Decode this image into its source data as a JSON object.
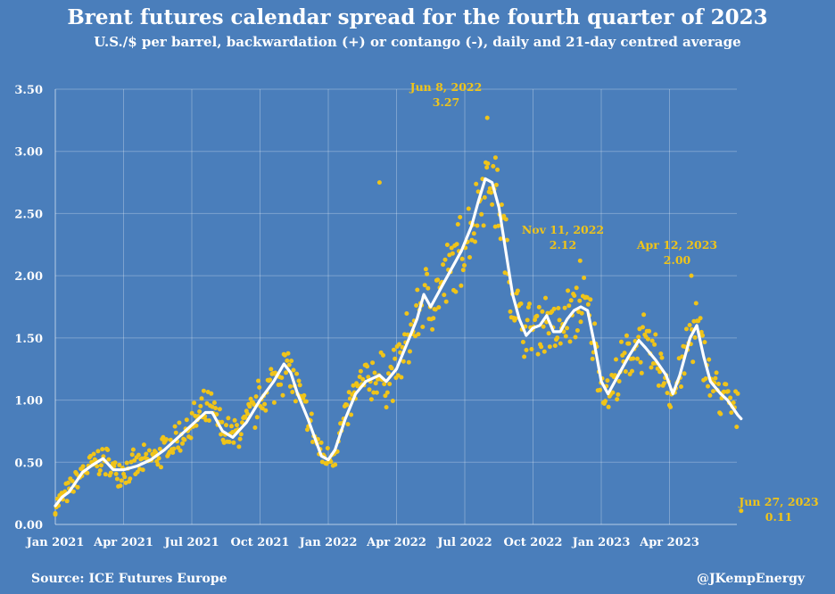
{
  "chart_data": {
    "type": "scatter",
    "title": "Brent futures calendar spread for the fourth quarter of 2023",
    "subtitle": "U.S./$ per barrel, backwardation (+) or contango (-), daily and 21-day centred average",
    "xlabel": "",
    "ylabel": "",
    "ylim": [
      0,
      3.5
    ],
    "y_ticks": [
      "0.00",
      "0.50",
      "1.00",
      "1.50",
      "2.00",
      "2.50",
      "3.00",
      "3.50"
    ],
    "x_tick_labels": [
      "Jan 2021",
      "Apr 2021",
      "Jul 2021",
      "Oct 2021",
      "Jan 2022",
      "Apr 2022",
      "Jul 2022",
      "Oct 2022",
      "Jan 2023",
      "Apr 2023"
    ],
    "grid": true,
    "dot_color": "#f0c419",
    "line_color": "#ffffff",
    "series": [
      {
        "name": "21-day centred average",
        "kind": "line",
        "points": [
          [
            0.0,
            0.15
          ],
          [
            0.1,
            0.22
          ],
          [
            0.2,
            0.26
          ],
          [
            0.3,
            0.34
          ],
          [
            0.4,
            0.42
          ],
          [
            0.55,
            0.48
          ],
          [
            0.7,
            0.53
          ],
          [
            0.85,
            0.44
          ],
          [
            1.0,
            0.44
          ],
          [
            1.2,
            0.47
          ],
          [
            1.4,
            0.52
          ],
          [
            1.6,
            0.6
          ],
          [
            1.8,
            0.7
          ],
          [
            2.0,
            0.8
          ],
          [
            2.2,
            0.9
          ],
          [
            2.3,
            0.9
          ],
          [
            2.45,
            0.75
          ],
          [
            2.6,
            0.7
          ],
          [
            2.8,
            0.82
          ],
          [
            3.0,
            1.0
          ],
          [
            3.2,
            1.15
          ],
          [
            3.35,
            1.29
          ],
          [
            3.45,
            1.22
          ],
          [
            3.55,
            1.05
          ],
          [
            3.7,
            0.85
          ],
          [
            3.9,
            0.55
          ],
          [
            4.0,
            0.52
          ],
          [
            4.1,
            0.6
          ],
          [
            4.25,
            0.85
          ],
          [
            4.4,
            1.05
          ],
          [
            4.55,
            1.15
          ],
          [
            4.75,
            1.2
          ],
          [
            4.85,
            1.15
          ],
          [
            5.0,
            1.25
          ],
          [
            5.15,
            1.45
          ],
          [
            5.3,
            1.65
          ],
          [
            5.4,
            1.85
          ],
          [
            5.5,
            1.75
          ],
          [
            5.65,
            1.9
          ],
          [
            5.8,
            2.05
          ],
          [
            5.95,
            2.2
          ],
          [
            6.1,
            2.4
          ],
          [
            6.2,
            2.6
          ],
          [
            6.3,
            2.78
          ],
          [
            6.4,
            2.75
          ],
          [
            6.5,
            2.55
          ],
          [
            6.6,
            2.2
          ],
          [
            6.7,
            1.85
          ],
          [
            6.8,
            1.65
          ],
          [
            6.9,
            1.52
          ],
          [
            7.0,
            1.58
          ],
          [
            7.1,
            1.6
          ],
          [
            7.2,
            1.68
          ],
          [
            7.3,
            1.55
          ],
          [
            7.4,
            1.55
          ],
          [
            7.5,
            1.65
          ],
          [
            7.6,
            1.72
          ],
          [
            7.7,
            1.75
          ],
          [
            7.8,
            1.72
          ],
          [
            7.9,
            1.45
          ],
          [
            8.0,
            1.15
          ],
          [
            8.1,
            1.05
          ],
          [
            8.25,
            1.2
          ],
          [
            8.4,
            1.35
          ],
          [
            8.55,
            1.48
          ],
          [
            8.65,
            1.42
          ],
          [
            8.8,
            1.32
          ],
          [
            8.95,
            1.2
          ],
          [
            9.05,
            1.05
          ],
          [
            9.15,
            1.2
          ],
          [
            9.3,
            1.5
          ],
          [
            9.4,
            1.6
          ],
          [
            9.5,
            1.35
          ],
          [
            9.6,
            1.15
          ],
          [
            9.75,
            1.05
          ],
          [
            9.85,
            1.0
          ],
          [
            10.0,
            0.88
          ],
          [
            10.05,
            0.85
          ]
        ]
      }
    ],
    "annotations": [
      {
        "label": "Jun 8, 2022",
        "value": "3.27"
      },
      {
        "label": "Nov 11, 2022",
        "value": "2.12"
      },
      {
        "label": "Apr 12, 2023",
        "value": "2.00"
      },
      {
        "label": "Jun 27, 2023",
        "value": "0.11"
      }
    ]
  },
  "footer": {
    "source": "Source: ICE Futures Europe",
    "handle": "@JKempEnergy"
  }
}
